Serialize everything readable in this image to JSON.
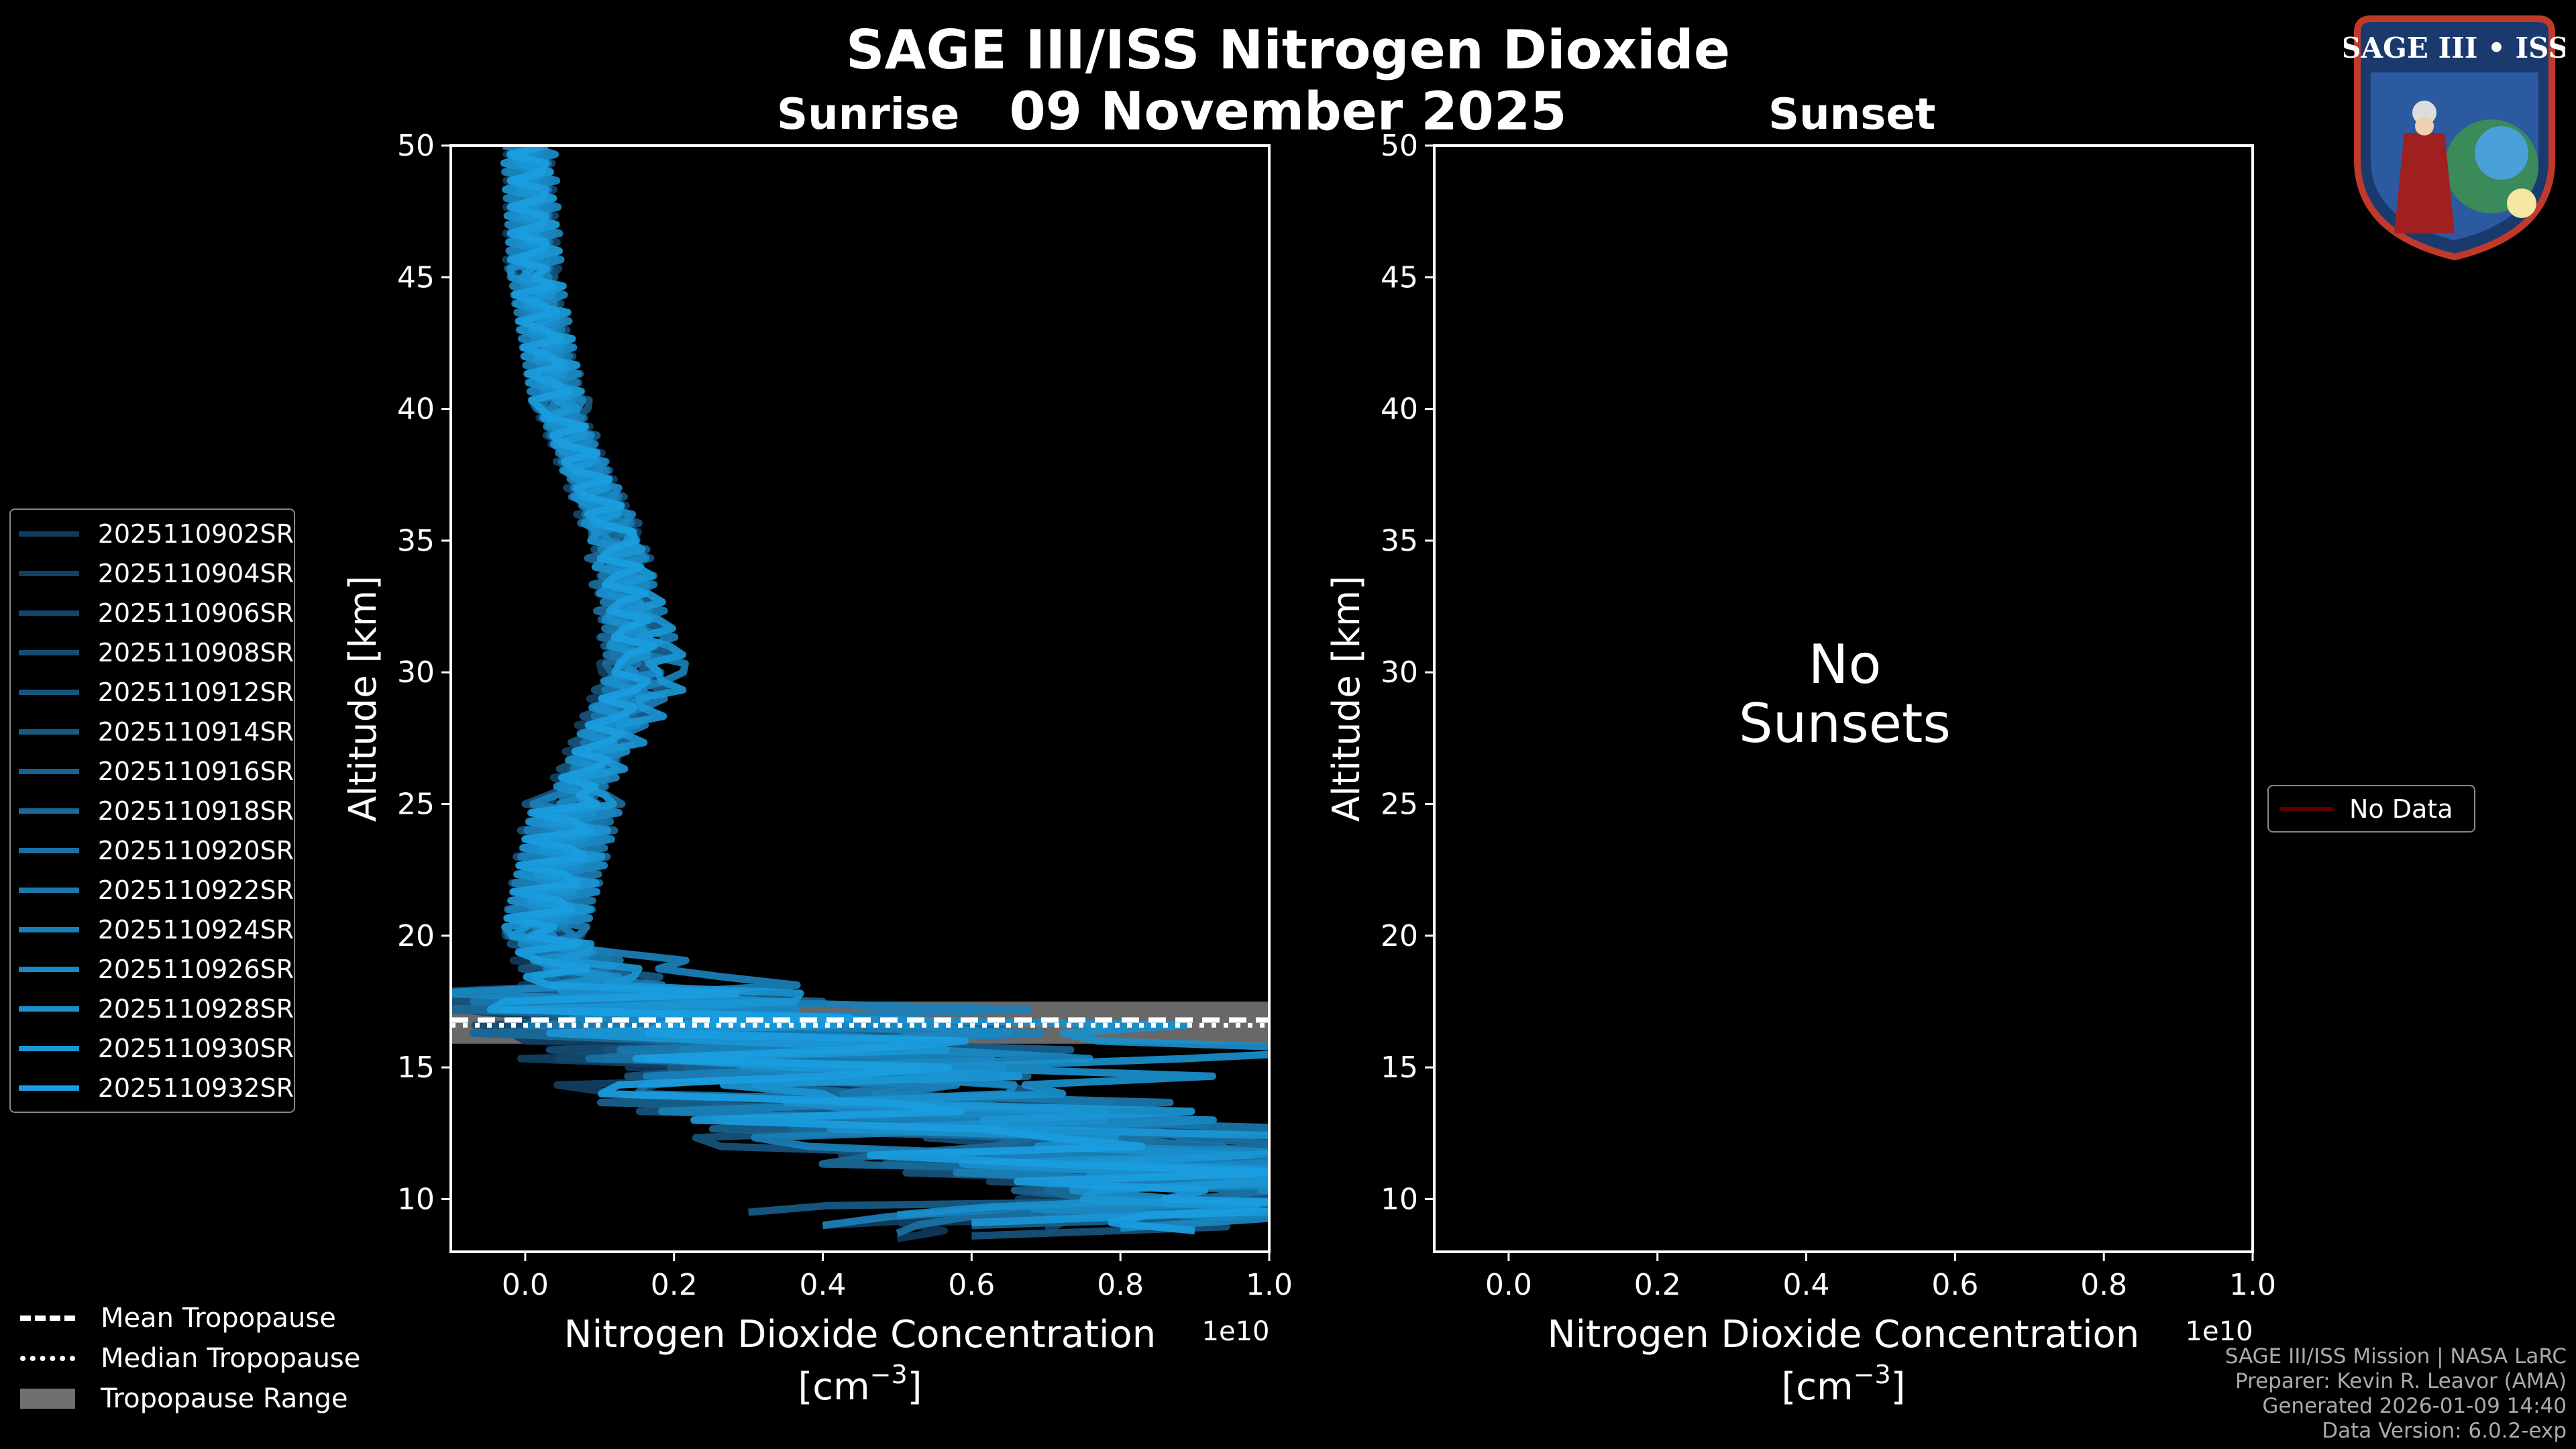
{
  "title": "SAGE III/ISS Nitrogen Dioxide",
  "date": "09 November 2025",
  "panels": {
    "sunrise": {
      "label": "Sunrise"
    },
    "sunset": {
      "label": "Sunset",
      "empty_message_line1": "No",
      "empty_message_line2": "Sunsets"
    }
  },
  "chart_data": [
    {
      "type": "line",
      "panel": "Sunrise",
      "ylabel": "Altitude [km]",
      "xlabel_line1": "Nitrogen Dioxide Concentration",
      "xlabel_line2": "[cm",
      "xlabel_sup": "−3",
      "xlabel_close": "]",
      "x_offset_label": "1e10",
      "xlim": [
        -0.1,
        1.0
      ],
      "ylim": [
        8,
        50
      ],
      "xticks": [
        "0.0",
        "0.2",
        "0.4",
        "0.6",
        "0.8",
        "1.0"
      ],
      "yticks": [
        "10",
        "15",
        "20",
        "25",
        "30",
        "35",
        "40",
        "45",
        "50"
      ],
      "x_unit_scale": 10000000000.0,
      "series": [
        {
          "name": "2025110902SR",
          "color": "#0f3a5c",
          "y": [
            50,
            45,
            40,
            35,
            30,
            25,
            20,
            17.5,
            16,
            14,
            12,
            10,
            8.5
          ],
          "x": [
            0.0,
            0.01,
            0.04,
            0.12,
            0.14,
            0.06,
            0.02,
            0.05,
            0.18,
            0.45,
            0.7,
            1.0,
            0.5
          ]
        },
        {
          "name": "2025110904SR",
          "color": "#114063",
          "y": [
            50,
            45,
            40,
            35,
            30,
            25,
            20,
            17.5,
            16,
            14,
            12,
            10,
            9
          ],
          "x": [
            0.0,
            0.0,
            0.05,
            0.13,
            0.13,
            0.05,
            0.03,
            0.08,
            0.2,
            0.3,
            0.8,
            0.9,
            0.4
          ]
        },
        {
          "name": "2025110906SR",
          "color": "#13466b",
          "y": [
            50,
            45,
            40,
            35,
            30,
            25,
            20,
            17.5,
            16,
            14,
            12,
            10,
            8.8
          ],
          "x": [
            0.01,
            0.02,
            0.04,
            0.11,
            0.15,
            0.07,
            0.02,
            0.1,
            0.15,
            0.4,
            0.6,
            1.0,
            0.7
          ]
        },
        {
          "name": "2025110908SR",
          "color": "#154d74",
          "y": [
            50,
            45,
            40,
            35,
            30,
            25,
            20,
            17.5,
            16,
            14,
            12,
            10,
            9.2
          ],
          "x": [
            0.0,
            0.01,
            0.05,
            0.12,
            0.16,
            0.06,
            0.03,
            0.12,
            0.22,
            0.5,
            0.75,
            0.95,
            0.8
          ]
        },
        {
          "name": "2025110912SR",
          "color": "#17547d",
          "y": [
            50,
            45,
            40,
            35,
            30,
            25,
            20,
            17.5,
            16,
            14,
            12,
            10,
            8.6
          ],
          "x": [
            0.0,
            0.02,
            0.04,
            0.14,
            0.13,
            0.05,
            0.02,
            0.06,
            0.3,
            0.35,
            0.5,
            1.0,
            0.6
          ]
        },
        {
          "name": "2025110914SR",
          "color": "#185b86",
          "y": [
            50,
            45,
            40,
            35,
            30,
            25,
            20,
            17.5,
            16,
            14,
            12,
            10,
            9.5
          ],
          "x": [
            0.01,
            0.0,
            0.06,
            0.12,
            0.14,
            0.07,
            0.03,
            0.2,
            0.4,
            0.45,
            0.9,
            1.0,
            0.3
          ]
        },
        {
          "name": "2025110916SR",
          "color": "#19628f",
          "y": [
            50,
            45,
            40,
            35,
            30,
            25,
            20,
            17.5,
            16,
            14,
            12,
            10,
            9
          ],
          "x": [
            0.0,
            0.01,
            0.04,
            0.13,
            0.18,
            0.06,
            0.02,
            0.15,
            0.55,
            0.3,
            0.6,
            0.95,
            0.6
          ]
        },
        {
          "name": "2025110918SR",
          "color": "#1a6a99",
          "y": [
            50,
            45,
            40,
            35,
            30,
            25,
            20,
            17.5,
            16,
            14,
            12,
            10,
            9.8
          ],
          "x": [
            0.0,
            0.02,
            0.05,
            0.11,
            0.14,
            0.08,
            0.03,
            0.1,
            0.2,
            0.6,
            0.4,
            1.0,
            0.9
          ]
        },
        {
          "name": "2025110920SR",
          "color": "#1a71a3",
          "y": [
            50,
            45,
            40,
            35,
            30,
            25,
            20,
            17.5,
            16,
            14,
            12,
            10,
            8.7
          ],
          "x": [
            0.01,
            0.01,
            0.04,
            0.12,
            0.15,
            0.06,
            0.02,
            0.08,
            0.25,
            0.4,
            0.85,
            1.0,
            0.5
          ]
        },
        {
          "name": "2025110922SR",
          "color": "#1a78ad",
          "y": [
            50,
            45,
            40,
            35,
            30,
            25,
            20,
            17.5,
            16,
            14,
            12,
            10,
            9.3
          ],
          "x": [
            0.0,
            0.0,
            0.05,
            0.13,
            0.14,
            0.07,
            0.03,
            0.18,
            0.3,
            0.55,
            0.95,
            0.9,
            0.7
          ]
        },
        {
          "name": "2025110924SR",
          "color": "#1a80b8",
          "y": [
            50,
            45,
            40,
            35,
            30,
            25,
            20,
            17.5,
            16,
            14,
            12,
            10,
            9
          ],
          "x": [
            0.0,
            0.01,
            0.04,
            0.12,
            0.19,
            0.06,
            0.02,
            0.42,
            0.45,
            0.35,
            0.6,
            1.0,
            0.4
          ]
        },
        {
          "name": "2025110926SR",
          "color": "#1a88c2",
          "y": [
            50,
            45,
            40,
            35,
            30,
            25,
            20,
            17.5,
            16,
            14,
            12,
            10,
            8.9
          ],
          "x": [
            0.01,
            0.02,
            0.05,
            0.14,
            0.15,
            0.08,
            0.03,
            0.12,
            0.6,
            0.4,
            0.95,
            1.0,
            0.8
          ]
        },
        {
          "name": "2025110928SR",
          "color": "#1a8fcc",
          "y": [
            50,
            45,
            40,
            35,
            30,
            25,
            20,
            17.5,
            16,
            14,
            12,
            10,
            9.4
          ],
          "x": [
            0.0,
            0.01,
            0.04,
            0.11,
            0.14,
            0.06,
            0.02,
            0.1,
            1.0,
            0.58,
            0.7,
            1.0,
            0.5
          ]
        },
        {
          "name": "2025110930SR",
          "color": "#1a96d5",
          "y": [
            50,
            45,
            40,
            35,
            30,
            25,
            20,
            17.5,
            16,
            14,
            12,
            10,
            9.1
          ],
          "x": [
            0.0,
            0.02,
            0.05,
            0.13,
            0.2,
            0.07,
            0.03,
            0.2,
            0.3,
            0.5,
            0.94,
            1.0,
            0.6
          ]
        },
        {
          "name": "2025110932SR",
          "color": "#1a9ddf",
          "y": [
            50,
            45,
            40,
            35,
            30,
            25,
            20,
            17.5,
            16,
            14,
            12,
            10,
            8.8
          ],
          "x": [
            0.01,
            0.01,
            0.04,
            0.12,
            0.15,
            0.06,
            0.02,
            0.05,
            0.4,
            0.35,
            0.6,
            1.0,
            0.9
          ]
        }
      ],
      "tropopause": {
        "mean": 16.8,
        "median": 16.6,
        "range": [
          15.9,
          17.5
        ]
      }
    },
    {
      "type": "line",
      "panel": "Sunset",
      "ylabel": "Altitude [km]",
      "xlabel_line1": "Nitrogen Dioxide Concentration",
      "xlabel_line2": "[cm",
      "xlabel_sup": "−3",
      "xlabel_close": "]",
      "x_offset_label": "1e10",
      "xlim": [
        -0.1,
        1.0
      ],
      "ylim": [
        8,
        50
      ],
      "xticks": [
        "0.0",
        "0.2",
        "0.4",
        "0.6",
        "0.8",
        "1.0"
      ],
      "yticks": [
        "10",
        "15",
        "20",
        "25",
        "30",
        "35",
        "40",
        "45",
        "50"
      ],
      "series": [
        {
          "name": "No Data",
          "color": "#5a0000",
          "x": [],
          "y": []
        }
      ]
    }
  ],
  "bottom_legend": {
    "mean": "Mean Tropopause",
    "median": "Median Tropopause",
    "range": "Tropopause Range"
  },
  "credits": {
    "line1": "SAGE III/ISS Mission | NASA LaRC",
    "line2": "Preparer: Kevin R. Leavor (AMA)",
    "line3": "Generated 2026-01-09 14:40",
    "line4": "Data Version: 6.0.2-exp"
  },
  "logo": {
    "text": "SAGE III • ISS"
  }
}
